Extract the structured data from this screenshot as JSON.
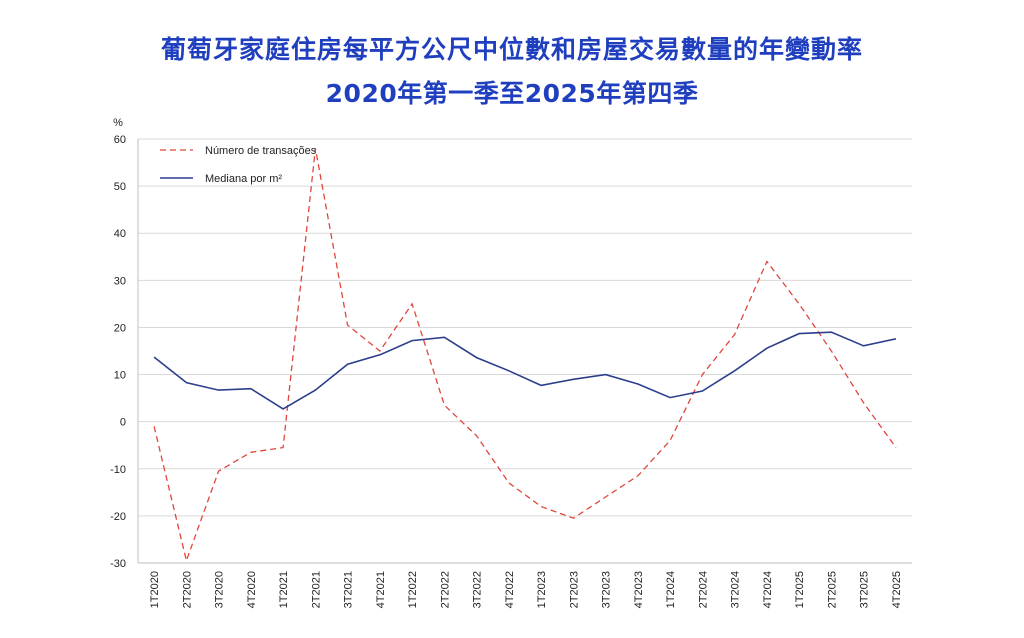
{
  "title_line1": "葡萄牙家庭住房每平方公尺中位數和房屋交易數量的年變動率",
  "title_line2": "2020年第一季至2025年第四季",
  "colors": {
    "title": "#1f3fbf",
    "median": "#2b3f8c",
    "transactions": "#e0463c",
    "grid": "#d9d9d9"
  },
  "chart_data": {
    "type": "line",
    "ylabel": "%",
    "ylim": [
      -30,
      60
    ],
    "yticks": [
      60,
      50,
      40,
      30,
      20,
      10,
      0,
      -10,
      -20,
      -30
    ],
    "grid": true,
    "legend_position": "top-left",
    "categories": [
      "1T2020",
      "2T2020",
      "3T2020",
      "4T2020",
      "1T2021",
      "2T2021",
      "3T2021",
      "4T2021",
      "1T2022",
      "2T2022",
      "3T2022",
      "4T2022",
      "1T2023",
      "2T2023",
      "3T2023",
      "4T2023",
      "1T2024",
      "2T2024",
      "3T2024",
      "4T2024",
      "1T2025",
      "2T2025",
      "3T2025",
      "4T2025"
    ],
    "series": [
      {
        "name": "Número de transações",
        "style": "dashed",
        "values": [
          -1,
          -29.5,
          -10.5,
          -6.5,
          -5.5,
          58,
          20.5,
          15,
          25,
          3.5,
          -3,
          -13,
          -18,
          -20.5,
          -16,
          -11.5,
          -4,
          10,
          18.5,
          34,
          25,
          15,
          4,
          -5.5
        ]
      },
      {
        "name": "Mediana por m²",
        "style": "solid",
        "values": [
          13.7,
          8.3,
          6.7,
          7,
          2.7,
          6.7,
          12.2,
          14.2,
          17.2,
          17.9,
          13.6,
          10.8,
          7.7,
          9,
          10,
          8,
          5.1,
          6.5,
          10.8,
          15.6,
          18.7,
          19,
          16.1,
          17.6
        ]
      }
    ]
  }
}
